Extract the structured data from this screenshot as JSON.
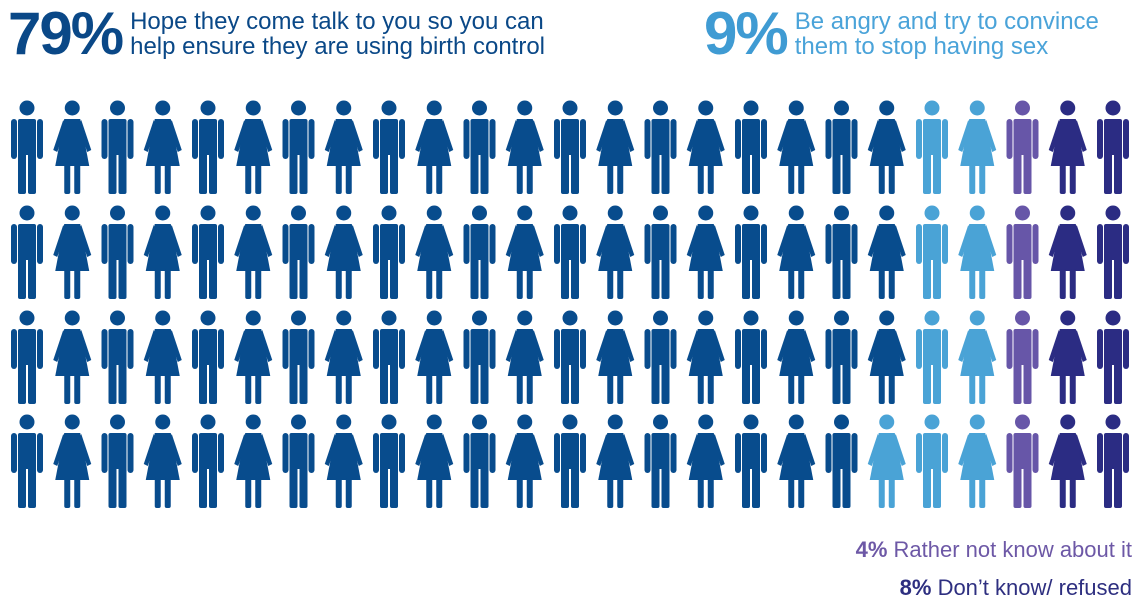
{
  "chart_data": {
    "type": "pictogram",
    "total_icons": 100,
    "grid": {
      "rows": 4,
      "columns": 25
    },
    "series": [
      {
        "pct": "79%",
        "label": "Hope they come talk to you so you can help ensure they are using birth control",
        "value": 79,
        "color": "#084c8d"
      },
      {
        "pct": "9%",
        "label": "Be angry and try to convince them to stop having sex",
        "value": 9,
        "color": "#4aa3d6"
      },
      {
        "pct": "4%",
        "label": "Rather not know about it",
        "value": 4,
        "color": "#6756a8"
      },
      {
        "pct": "8%",
        "label": "Don’t know/ refused",
        "value": 8,
        "color": "#2b2c83"
      }
    ],
    "icon_pattern": "alternating male/female by column, starting male"
  }
}
